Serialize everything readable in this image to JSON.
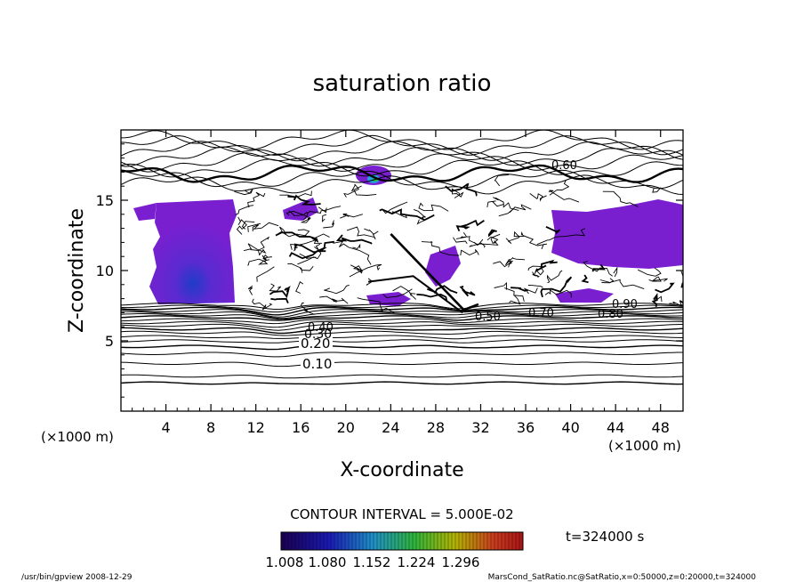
{
  "chart_data": {
    "type": "heatmap",
    "title": "saturation ratio",
    "xlabel": "X-coordinate",
    "ylabel": "Z-coordinate",
    "x_unit": "(×1000 m)",
    "y_unit": "(×1000 m)",
    "xlim": [
      0,
      50
    ],
    "ylim": [
      0,
      20
    ],
    "x_ticks": [
      "4",
      "8",
      "12",
      "16",
      "20",
      "24",
      "28",
      "32",
      "36",
      "40",
      "44",
      "48"
    ],
    "y_ticks": [
      "5",
      "10",
      "15"
    ],
    "contour_interval_text": "CONTOUR INTERVAL = 5.000E-02",
    "contour_labels": [
      "0.10",
      "0.20",
      "0.30",
      "0.40",
      "0.50",
      "0.60",
      "0.70",
      "0.80",
      "0.90"
    ],
    "colorbar": {
      "ticks": [
        "1.008",
        "1.080",
        "1.152",
        "1.224",
        "1.296"
      ],
      "colors": [
        "#1a0050",
        "#1a1ab4",
        "#1e90c8",
        "#2eb43c",
        "#b4b400",
        "#c83c1e",
        "#aa1414"
      ]
    },
    "filled_color": "#7a1fd0",
    "time_label": "t=324000 s",
    "footer_left": "/usr/bin/gpview  2008-12-29",
    "footer_right": "MarsCond_SatRatio.nc@SatRatio,x=0:50000,z=0:20000,t=324000"
  }
}
